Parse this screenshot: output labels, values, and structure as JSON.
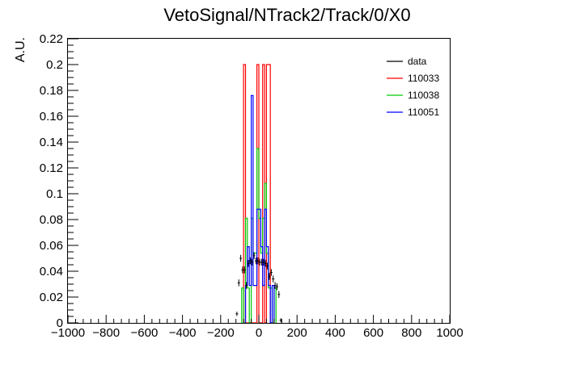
{
  "chart_data": {
    "type": "line",
    "title": "VetoSignal/NTrack2/Track/0/X0",
    "xlabel": "",
    "ylabel": "A.U.",
    "xlim": [
      -1000,
      1000
    ],
    "ylim": [
      0,
      0.22
    ],
    "xticks": [
      -1000,
      -800,
      -600,
      -400,
      -200,
      0,
      200,
      400,
      600,
      800,
      1000
    ],
    "xtick_labels": [
      "−1000",
      "−800",
      "−600",
      "−400",
      "−200",
      "0",
      "200",
      "400",
      "600",
      "800",
      "1000"
    ],
    "yticks": [
      0,
      0.02,
      0.04,
      0.06,
      0.08,
      0.1,
      0.12,
      0.14,
      0.16,
      0.18,
      0.2,
      0.22
    ],
    "ytick_labels": [
      "0",
      "0.02",
      "0.04",
      "0.06",
      "0.08",
      "0.1",
      "0.12",
      "0.14",
      "0.16",
      "0.18",
      "0.2",
      "0.22"
    ],
    "grid": false,
    "legend_position": "top-right",
    "legend": [
      {
        "name": "data",
        "color": "#000000"
      },
      {
        "name": "110033",
        "color": "#ff0000"
      },
      {
        "name": "110038",
        "color": "#00cc00"
      },
      {
        "name": "110051",
        "color": "#0000ff"
      }
    ],
    "series": [
      {
        "name": "110033",
        "color": "#ff0000",
        "style": "step",
        "bins": [
          {
            "x0": -80,
            "x1": -70,
            "y": 0.2
          },
          {
            "x0": -70,
            "x1": -10,
            "y": 0
          },
          {
            "x0": -10,
            "x1": 0,
            "y": 0.2
          },
          {
            "x0": 0,
            "x1": 20,
            "y": 0
          },
          {
            "x0": 20,
            "x1": 30,
            "y": 0.2
          },
          {
            "x0": 30,
            "x1": 40,
            "y": 0
          },
          {
            "x0": 40,
            "x1": 60,
            "y": 0.2
          }
        ]
      },
      {
        "name": "110038",
        "color": "#00cc00",
        "style": "step",
        "bins": [
          {
            "x0": -90,
            "x1": -80,
            "y": 0.027
          },
          {
            "x0": -80,
            "x1": -70,
            "y": 0
          },
          {
            "x0": -70,
            "x1": -60,
            "y": 0.081
          },
          {
            "x0": -60,
            "x1": -50,
            "y": 0.027
          },
          {
            "x0": -50,
            "x1": -40,
            "y": 0
          },
          {
            "x0": -40,
            "x1": -30,
            "y": 0.081
          },
          {
            "x0": -30,
            "x1": -20,
            "y": 0.054
          },
          {
            "x0": -20,
            "x1": -10,
            "y": 0.054
          },
          {
            "x0": -10,
            "x1": 0,
            "y": 0.135
          },
          {
            "x0": 0,
            "x1": 10,
            "y": 0.081
          },
          {
            "x0": 10,
            "x1": 20,
            "y": 0.054
          },
          {
            "x0": 20,
            "x1": 30,
            "y": 0.081
          },
          {
            "x0": 30,
            "x1": 40,
            "y": 0.108
          },
          {
            "x0": 40,
            "x1": 50,
            "y": 0.054
          },
          {
            "x0": 50,
            "x1": 60,
            "y": 0.027
          },
          {
            "x0": 60,
            "x1": 70,
            "y": 0.027
          },
          {
            "x0": 70,
            "x1": 80,
            "y": 0
          },
          {
            "x0": 80,
            "x1": 90,
            "y": 0.027
          }
        ]
      },
      {
        "name": "110051",
        "color": "#0000ff",
        "style": "step",
        "bins": [
          {
            "x0": -70,
            "x1": -60,
            "y": 0.029
          },
          {
            "x0": -60,
            "x1": -50,
            "y": 0.059
          },
          {
            "x0": -50,
            "x1": -40,
            "y": 0.029
          },
          {
            "x0": -40,
            "x1": -30,
            "y": 0.176
          },
          {
            "x0": -30,
            "x1": -20,
            "y": 0.029
          },
          {
            "x0": -20,
            "x1": -10,
            "y": 0.029
          },
          {
            "x0": -10,
            "x1": 0,
            "y": 0.088
          },
          {
            "x0": 0,
            "x1": 10,
            "y": 0.088
          },
          {
            "x0": 10,
            "x1": 20,
            "y": 0.059
          },
          {
            "x0": 20,
            "x1": 30,
            "y": 0.029
          },
          {
            "x0": 30,
            "x1": 40,
            "y": 0.088
          },
          {
            "x0": 40,
            "x1": 50,
            "y": 0.059
          },
          {
            "x0": 50,
            "x1": 60,
            "y": 0.029
          },
          {
            "x0": 60,
            "x1": 70,
            "y": 0.0
          },
          {
            "x0": 70,
            "x1": 80,
            "y": 0.029
          }
        ]
      },
      {
        "name": "data",
        "color": "#000000",
        "style": "errorbar",
        "points": [
          {
            "x": -115,
            "y": 0.007,
            "err": 0.001
          },
          {
            "x": -105,
            "y": 0.031,
            "err": 0.002
          },
          {
            "x": -95,
            "y": 0.05,
            "err": 0.002
          },
          {
            "x": -85,
            "y": 0.041,
            "err": 0.002
          },
          {
            "x": -75,
            "y": 0.041,
            "err": 0.002
          },
          {
            "x": -65,
            "y": 0.029,
            "err": 0.002
          },
          {
            "x": -55,
            "y": 0.046,
            "err": 0.002
          },
          {
            "x": -45,
            "y": 0.048,
            "err": 0.002
          },
          {
            "x": -35,
            "y": 0.047,
            "err": 0.002
          },
          {
            "x": -25,
            "y": 0.052,
            "err": 0.002
          },
          {
            "x": -15,
            "y": 0.048,
            "err": 0.002
          },
          {
            "x": -5,
            "y": 0.048,
            "err": 0.002
          },
          {
            "x": 5,
            "y": 0.047,
            "err": 0.002
          },
          {
            "x": 15,
            "y": 0.047,
            "err": 0.002
          },
          {
            "x": 25,
            "y": 0.047,
            "err": 0.002
          },
          {
            "x": 35,
            "y": 0.046,
            "err": 0.002
          },
          {
            "x": 45,
            "y": 0.044,
            "err": 0.002
          },
          {
            "x": 55,
            "y": 0.036,
            "err": 0.002
          },
          {
            "x": 65,
            "y": 0.039,
            "err": 0.002
          },
          {
            "x": 75,
            "y": 0.034,
            "err": 0.002
          },
          {
            "x": 85,
            "y": 0.029,
            "err": 0.002
          },
          {
            "x": 95,
            "y": 0.028,
            "err": 0.002
          },
          {
            "x": 105,
            "y": 0.022,
            "err": 0.002
          },
          {
            "x": 115,
            "y": 0.002,
            "err": 0.001
          }
        ]
      }
    ]
  }
}
